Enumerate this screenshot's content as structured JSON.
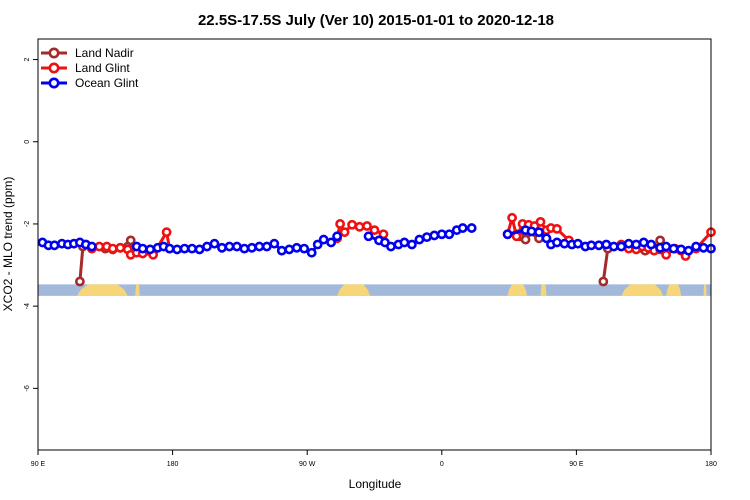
{
  "chart_data": {
    "type": "line",
    "title": "22.5S-17.5S July (Ver 10)   2015-01-01 to 2020-12-18",
    "xlabel": "Longitude",
    "ylabel": "XCO2 - MLO trend (ppm)",
    "x_axis_note": "continuous longitude 90 to 540 (90E eastward across dateline to 180)",
    "xlim": [
      90,
      540
    ],
    "ylim": [
      -7.5,
      2.5
    ],
    "x_ticks": [
      {
        "value": 90,
        "label": "90 E"
      },
      {
        "value": 180,
        "label": "180"
      },
      {
        "value": 270,
        "label": "90 W"
      },
      {
        "value": 360,
        "label": "0"
      },
      {
        "value": 450,
        "label": "90 E"
      },
      {
        "value": 540,
        "label": "180"
      }
    ],
    "y_ticks": [
      {
        "value": 2,
        "label": "2"
      },
      {
        "value": 0,
        "label": "0"
      },
      {
        "value": -2,
        "label": "-2"
      },
      {
        "value": -4,
        "label": "-4"
      },
      {
        "value": -6,
        "label": "-6"
      }
    ],
    "grid": false,
    "legend_position": "top-left",
    "land_strip": {
      "y_top": -3.47,
      "y_bottom": -3.75,
      "ocean_color": "#a3b9d9",
      "land_color": "#f7d67a",
      "land_segments": [
        [
          116,
          150
        ],
        [
          155,
          158
        ],
        [
          290,
          312
        ],
        [
          404,
          417
        ],
        [
          426,
          430
        ],
        [
          480,
          508
        ],
        [
          510,
          520
        ],
        [
          535,
          537
        ]
      ]
    },
    "series": [
      {
        "name": "Land Nadir",
        "color": "#a52a2a",
        "x": [
          118,
          120,
          135,
          140,
          145,
          150,
          152,
          156
        ],
        "y": [
          -3.4,
          -2.55,
          -2.6,
          -2.62,
          -2.58,
          -2.55,
          -2.4,
          -2.6
        ],
        "segments": [
          [
            118,
            156
          ]
        ],
        "extra": [
          {
            "x": [
              410,
              412,
              416,
              418,
              425
            ],
            "y": [
              -2.25,
              -2.3,
              -2.38,
              -2.2,
              -2.35
            ]
          },
          {
            "x": [
              468,
              471
            ],
            "y": [
              -3.4,
              -2.6
            ]
          },
          {
            "x": [
              490,
              493,
              496,
              499,
              502,
              506
            ],
            "y": [
              -2.55,
              -2.58,
              -2.65,
              -2.6,
              -2.62,
              -2.4
            ]
          }
        ]
      },
      {
        "name": "Land Glint",
        "color": "#ee1111",
        "x": [
          122,
          126,
          131,
          136,
          140,
          145,
          150,
          152,
          156,
          160,
          167,
          176,
          178
        ],
        "y": [
          -2.5,
          -2.6,
          -2.55,
          -2.55,
          -2.6,
          -2.58,
          -2.62,
          -2.75,
          -2.7,
          -2.72,
          -2.75,
          -2.2,
          -2.6
        ],
        "extra": [
          {
            "x": [
              290,
              292,
              295,
              300,
              305,
              310,
              315,
              321
            ],
            "y": [
              -2.35,
              -2.0,
              -2.2,
              -2.02,
              -2.07,
              -2.05,
              -2.15,
              -2.25
            ]
          },
          {
            "x": [
              404,
              407,
              410,
              414,
              418,
              422,
              426,
              430,
              433,
              437,
              445
            ],
            "y": [
              -2.25,
              -1.85,
              -2.3,
              -2.0,
              -2.02,
              -2.05,
              -1.95,
              -2.15,
              -2.1,
              -2.12,
              -2.4
            ]
          },
          {
            "x": [
              480,
              485,
              490,
              494,
              498,
              502,
              506,
              510,
              516,
              520,
              523,
              530,
              540
            ],
            "y": [
              -2.5,
              -2.6,
              -2.62,
              -2.55,
              -2.58,
              -2.65,
              -2.62,
              -2.75,
              -2.6,
              -2.65,
              -2.78,
              -2.6,
              -2.2
            ]
          }
        ]
      },
      {
        "name": "Ocean Glint",
        "color": "#0000ee",
        "x": [
          93,
          97,
          101,
          106,
          110,
          114,
          118,
          122,
          126,
          156,
          160,
          165,
          170,
          174,
          178,
          183,
          188,
          193,
          198,
          203,
          208,
          213,
          218,
          223,
          228,
          233,
          238,
          243,
          248,
          253,
          258,
          263,
          268,
          273,
          277,
          281,
          286,
          290,
          311,
          318,
          322,
          326,
          331,
          335,
          340,
          345,
          350,
          355,
          360,
          365,
          370,
          374,
          380,
          404,
          416,
          420,
          425,
          430,
          433,
          437,
          442,
          447,
          451,
          456,
          460,
          465,
          470,
          475,
          480,
          485,
          490,
          495,
          500,
          506,
          510,
          515,
          520,
          525,
          530,
          535,
          540
        ],
        "y": [
          -2.45,
          -2.52,
          -2.52,
          -2.48,
          -2.5,
          -2.48,
          -2.45,
          -2.5,
          -2.55,
          -2.55,
          -2.6,
          -2.62,
          -2.58,
          -2.55,
          -2.6,
          -2.62,
          -2.6,
          -2.6,
          -2.62,
          -2.55,
          -2.48,
          -2.58,
          -2.55,
          -2.55,
          -2.6,
          -2.58,
          -2.55,
          -2.55,
          -2.48,
          -2.65,
          -2.62,
          -2.58,
          -2.6,
          -2.7,
          -2.5,
          -2.38,
          -2.45,
          -2.3,
          -2.3,
          -2.4,
          -2.45,
          -2.55,
          -2.5,
          -2.45,
          -2.5,
          -2.38,
          -2.32,
          -2.28,
          -2.25,
          -2.25,
          -2.15,
          -2.1,
          -2.1,
          -2.25,
          -2.15,
          -2.18,
          -2.2,
          -2.35,
          -2.5,
          -2.45,
          -2.48,
          -2.5,
          -2.48,
          -2.55,
          -2.52,
          -2.52,
          -2.5,
          -2.55,
          -2.55,
          -2.48,
          -2.5,
          -2.45,
          -2.5,
          -2.58,
          -2.55,
          -2.6,
          -2.62,
          -2.65,
          -2.55,
          -2.58,
          -2.6
        ]
      }
    ]
  }
}
